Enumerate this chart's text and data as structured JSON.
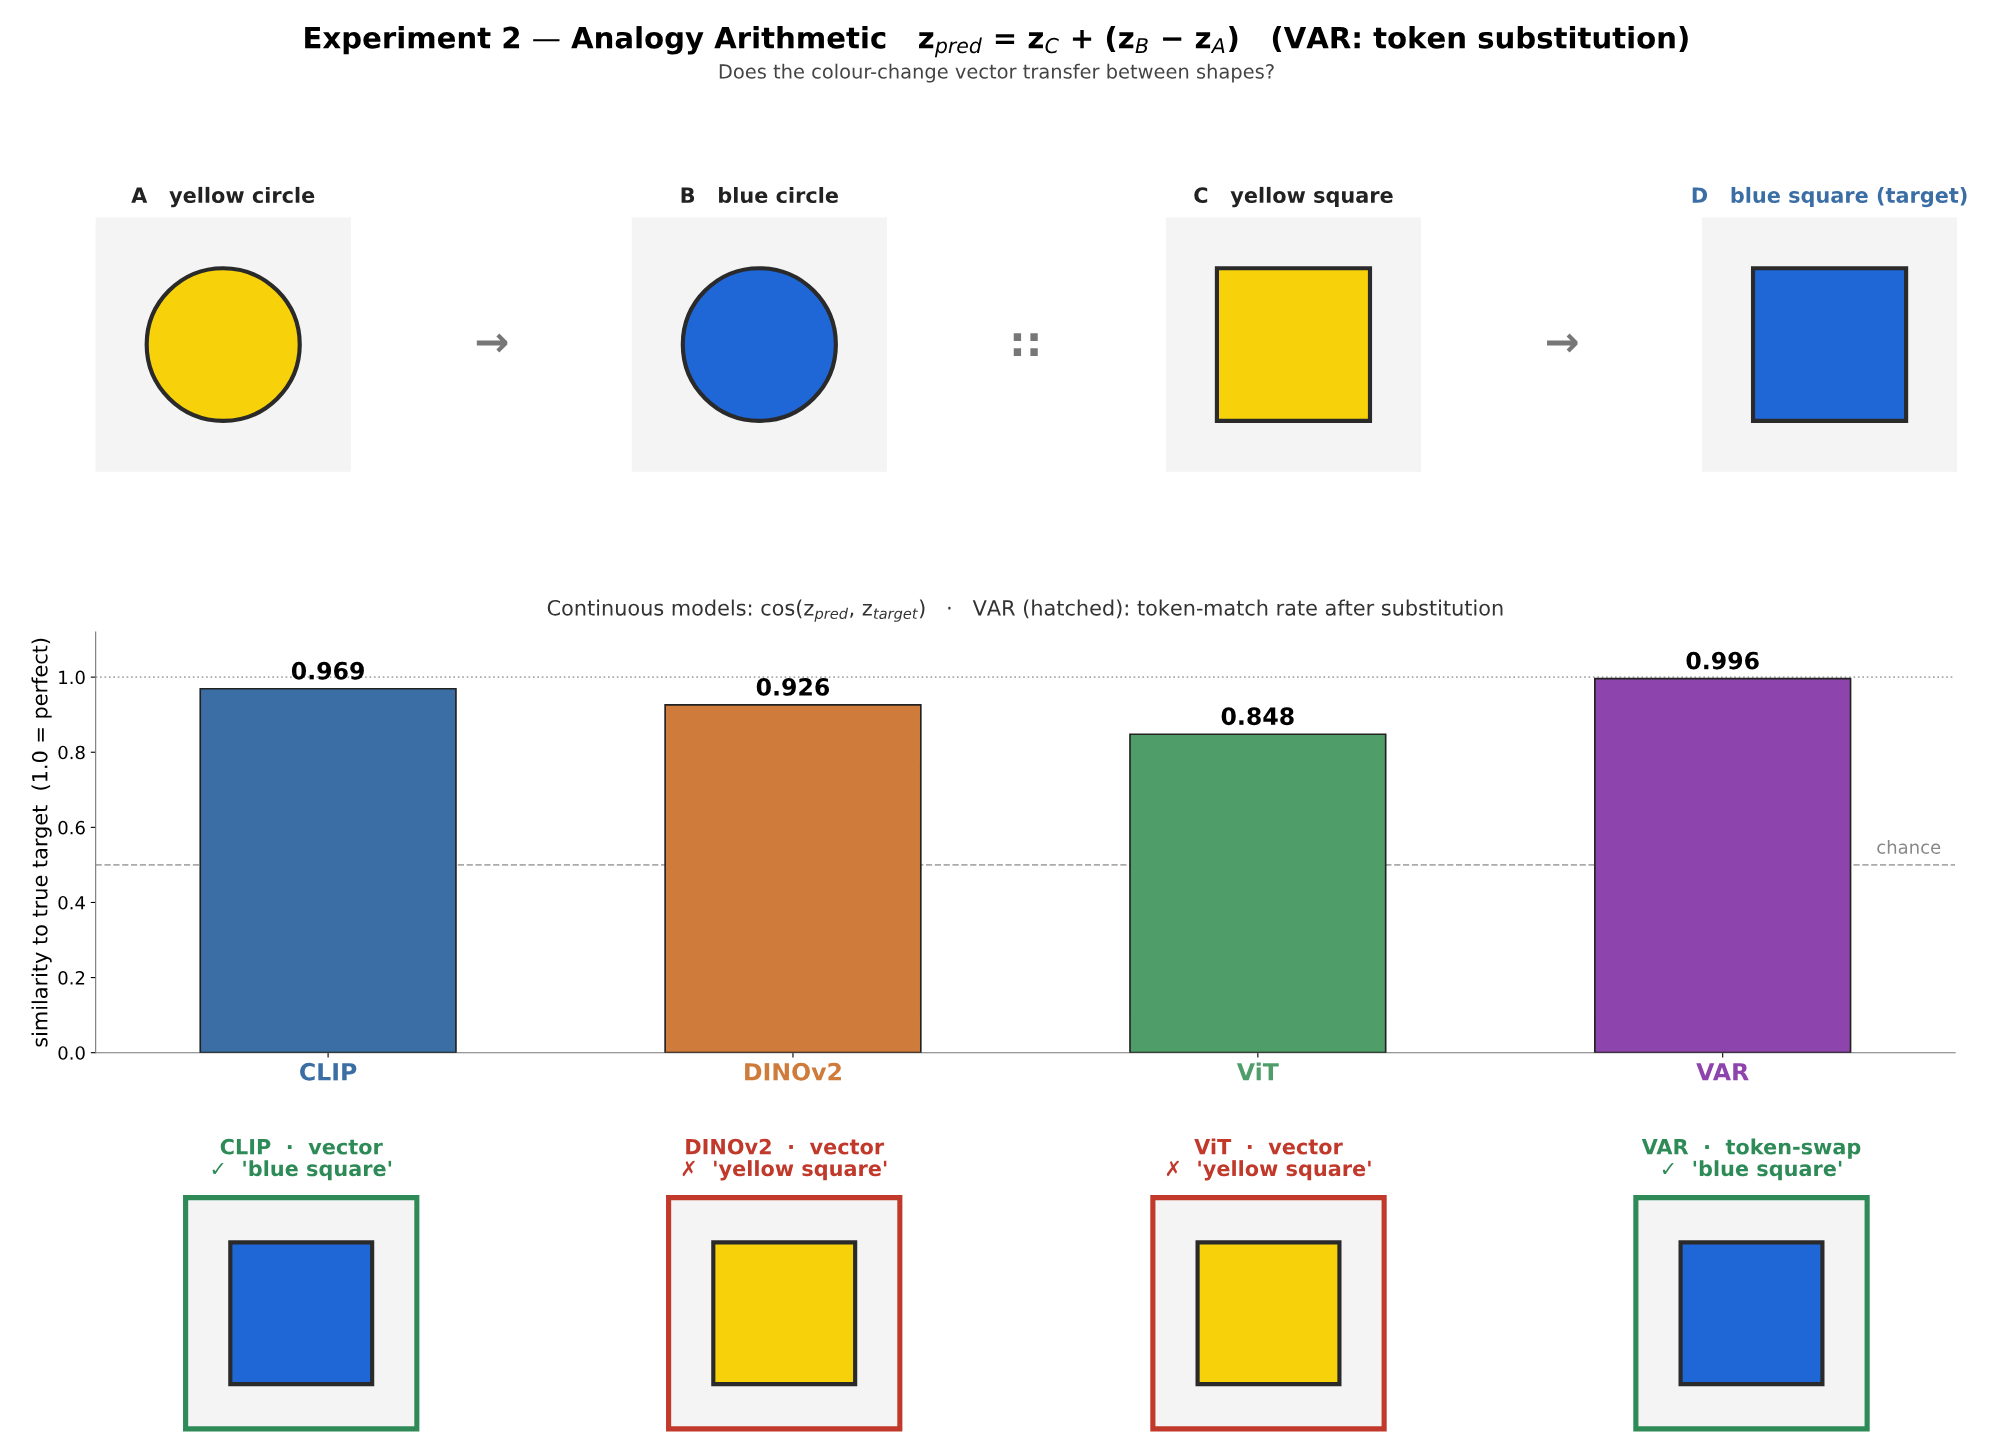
{
  "chart_data": {
    "type": "bar",
    "title": "Experiment 2 — Analogy Arithmetic   z$_{pred}$ = z$_{C}$ + (z$_{B}$ − z$_{A}$)   (VAR: token substitution)",
    "subtitle": "Does the colour-change vector transfer between shapes?",
    "ylabel": "similarity to true target  (1.0 = perfect)",
    "categories": [
      "CLIP",
      "DINOv2",
      "ViT",
      "VAR"
    ],
    "values": [
      0.969,
      0.926,
      0.848,
      0.996
    ],
    "colors": [
      "#3a6ea5",
      "#cf7b3b",
      "#4f9e6a",
      "#8e44ad"
    ],
    "data_labels": true,
    "ylim": [
      0,
      1.12
    ],
    "yticks": [
      {
        "value": 0,
        "label": "0.0"
      },
      0.2,
      0.4,
      0.6,
      0.8,
      {
        "value": 1,
        "label": "1.0"
      }
    ],
    "ref_lines": [
      {
        "axis": "y",
        "value": 1.0,
        "label": null,
        "color": "#aaaaaa",
        "line_style": "dotted"
      },
      {
        "axis": "y",
        "value": 0.5,
        "label": "chance",
        "color": "#aaaaaa",
        "line_style": "dashed"
      }
    ],
    "grid": false,
    "annotations": [
      "Continuous models: cos(z$_{pred}$, z$_{target}$)   ·   VAR (hatched): token-match rate after substitution",
      "A   yellow circle",
      "B   blue circle",
      "C   yellow square",
      "D   blue square (target)",
      "→",
      "::",
      "→",
      "CLIP  ·  vector\n✓  'blue square'",
      "DINOv2  ·  vector\n✗  'yellow square'",
      "ViT  ·  vector\n✗  'yellow square'",
      "VAR  ·  token-swap\n✓  'blue square'"
    ]
  }
}
